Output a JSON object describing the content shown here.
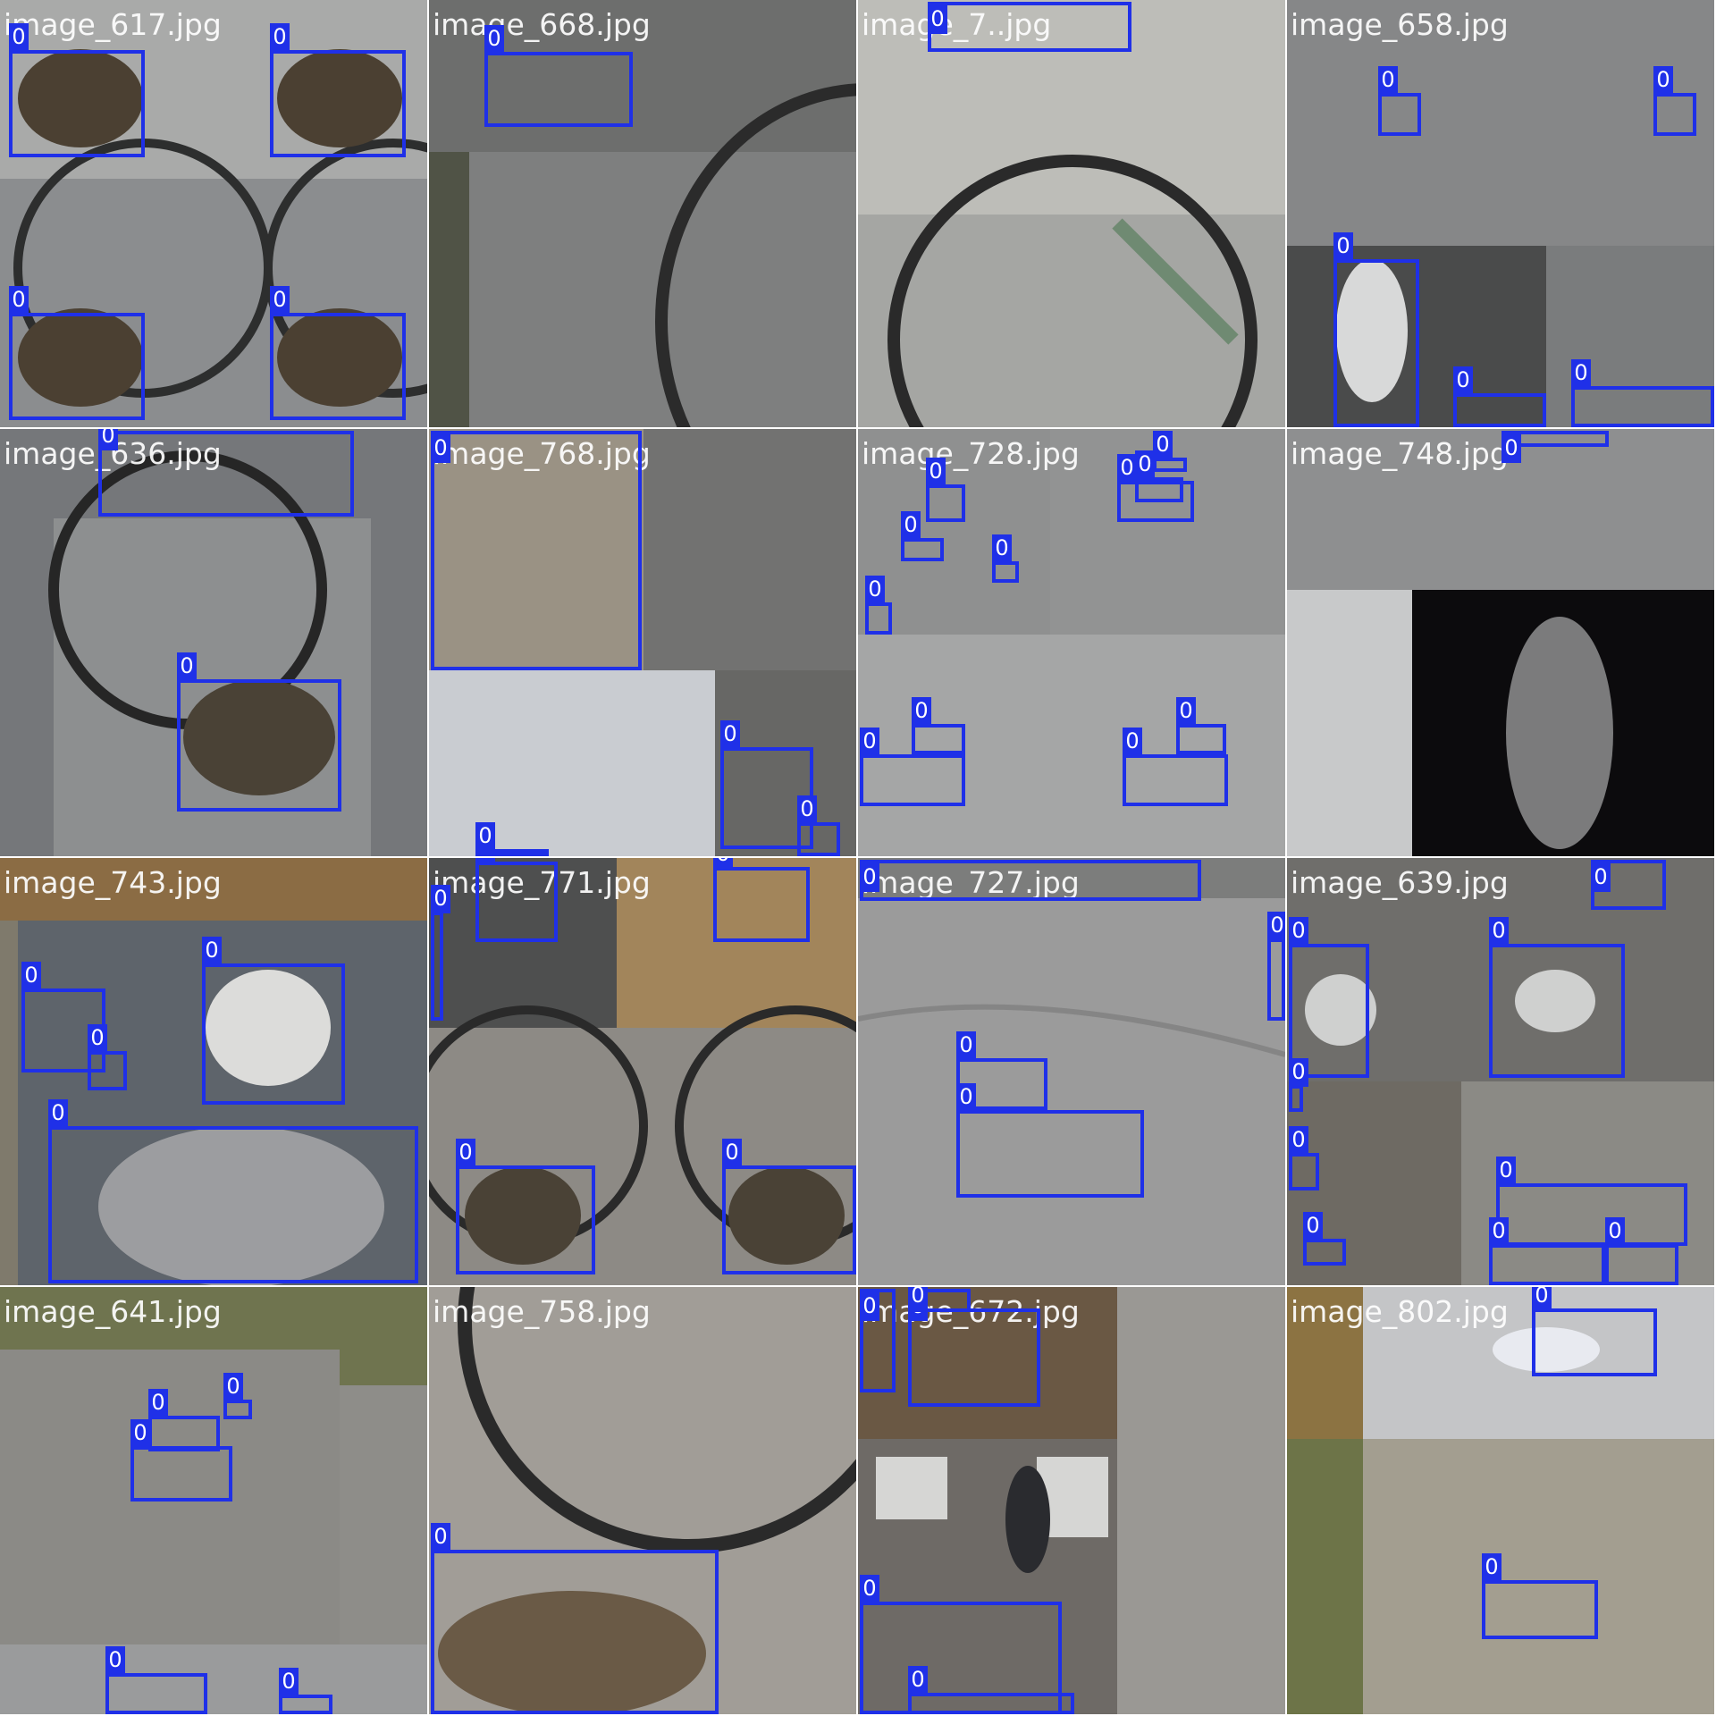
{
  "mosaic": {
    "class_tag": "0",
    "tiles": [
      {
        "label": "image_617.jpg",
        "bg": "#8b8d8f"
      },
      {
        "label": "image_668.jpg",
        "bg": "#7e7f7f"
      },
      {
        "label": "image_7..jpg",
        "bg": "#a5a6a3"
      },
      {
        "label": "image_658.jpg",
        "bg": "#7a7c7d"
      },
      {
        "label": "image_636.jpg",
        "bg": "#75777a"
      },
      {
        "label": "image_768.jpg",
        "bg": "#8e8c87"
      },
      {
        "label": "image_728.jpg",
        "bg": "#9d9e9e"
      },
      {
        "label": "image_748.jpg",
        "bg": "#54565a"
      },
      {
        "label": "image_743.jpg",
        "bg": "#7f7a6c"
      },
      {
        "label": "image_771.jpg",
        "bg": "#7b756a"
      },
      {
        "label": "image_727.jpg",
        "bg": "#9b9b9b"
      },
      {
        "label": "image_639.jpg",
        "bg": "#807d78"
      },
      {
        "label": "image_641.jpg",
        "bg": "#8e8d89"
      },
      {
        "label": "image_758.jpg",
        "bg": "#a19d97"
      },
      {
        "label": "image_672.jpg",
        "bg": "#7c756d"
      },
      {
        "label": "image_802.jpg",
        "bg": "#a39e90"
      }
    ]
  }
}
